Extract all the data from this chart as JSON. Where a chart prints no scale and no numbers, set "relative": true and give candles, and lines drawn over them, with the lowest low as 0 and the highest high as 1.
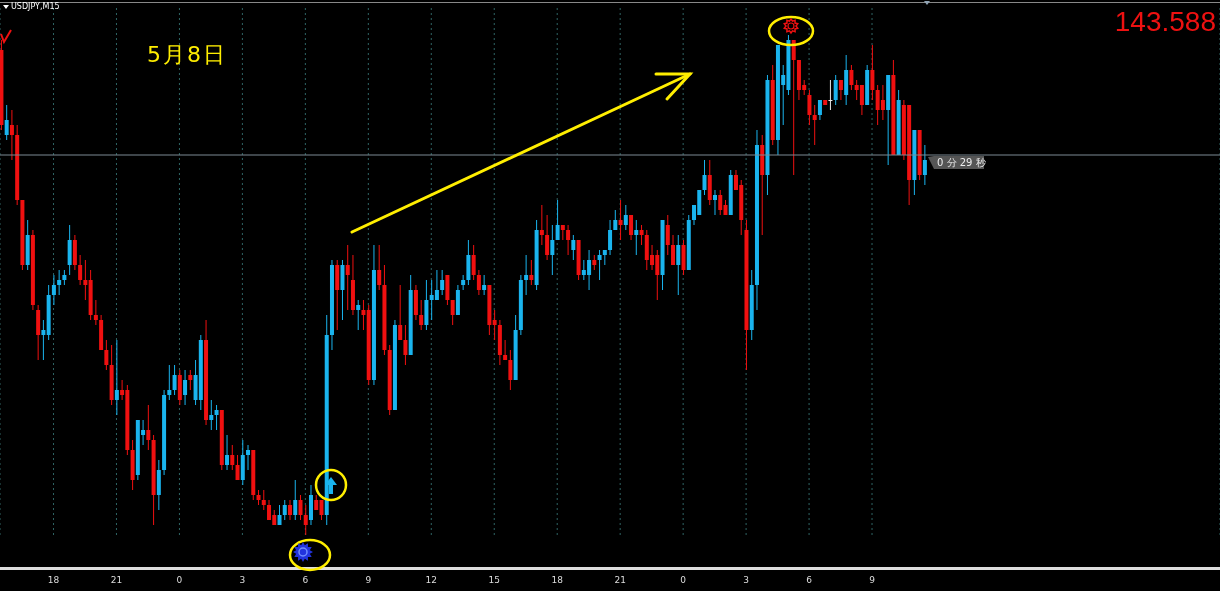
{
  "chart_data": {
    "type": "candlestick",
    "title": "USDJPY,M15",
    "relative": true,
    "annotations": [
      "5月8日",
      "143.588"
    ],
    "grid": "x",
    "ref_lines": [
      {
        "axis": "y",
        "value": 0.76,
        "label": "0 分 29 秒",
        "color": "#7d8a94"
      }
    ],
    "categories": [
      null,
      null,
      null,
      null,
      null,
      null,
      null,
      null,
      null,
      null,
      "18",
      null,
      null,
      null,
      null,
      null,
      null,
      null,
      null,
      null,
      null,
      null,
      "21",
      null,
      null,
      null,
      null,
      null,
      null,
      null,
      null,
      null,
      null,
      null,
      "0",
      null,
      null,
      null,
      null,
      null,
      null,
      null,
      null,
      null,
      null,
      null,
      "3",
      null,
      null,
      null,
      null,
      null,
      null,
      null,
      null,
      null,
      null,
      null,
      "6",
      null,
      null,
      null,
      null,
      null,
      null,
      null,
      null,
      null,
      null,
      null,
      "9",
      null,
      null,
      null,
      null,
      null,
      null,
      null,
      null,
      null,
      null,
      null,
      "12",
      null,
      null,
      null,
      null,
      null,
      null,
      null,
      null,
      null,
      null,
      null,
      "15",
      null,
      null,
      null,
      null,
      null,
      null,
      null,
      null,
      null,
      null,
      null,
      "18",
      null,
      null,
      null,
      null,
      null,
      null,
      null,
      null,
      null,
      null,
      null,
      "21",
      null,
      null,
      null,
      null,
      null,
      null,
      null,
      null,
      null,
      null,
      null,
      "0",
      null,
      null,
      null,
      null,
      null,
      null,
      null,
      null,
      null,
      null,
      null,
      "3",
      null,
      null,
      null,
      null,
      null,
      null,
      null,
      null,
      null,
      null,
      null,
      "6",
      null,
      null,
      null,
      null,
      null,
      null,
      null,
      null,
      null,
      null,
      null,
      "9",
      null,
      null,
      null,
      null,
      null,
      null,
      null,
      null,
      null,
      null
    ],
    "colors": [
      "#f01010",
      "#1ab4ee",
      "#f01010",
      "#f01010",
      "#f01010",
      "#1ab4ee",
      "#f01010",
      "#f01010",
      "#1ab4ee",
      "#1ab4ee",
      "#1ab4ee",
      "#1ab4ee",
      "#1ab4ee",
      "#1ab4ee",
      "#f01010",
      "#f01010",
      "#f01010",
      "#f01010",
      "#f01010",
      "#f01010",
      "#f01010",
      "#f01010",
      "#1ab4ee",
      "#f01010",
      "#f01010",
      "#f01010",
      "#1ab4ee",
      "#1ab4ee",
      "#f01010",
      "#f01010",
      "#1ab4ee",
      "#1ab4ee",
      "#1ab4ee",
      "#1ab4ee",
      "#f01010",
      "#1ab4ee",
      "#f01010",
      "#1ab4ee",
      "#1ab4ee",
      "#f01010",
      "#1ab4ee",
      "#1ab4ee",
      "#f01010",
      "#1ab4ee",
      "#f01010",
      "#f01010",
      "#1ab4ee",
      "#1ab4ee",
      "#f01010",
      "#f01010",
      "#f01010",
      "#f01010",
      "#f01010",
      "#1ab4ee",
      "#1ab4ee",
      "#f01010",
      "#1ab4ee",
      "#f01010",
      "#f01010",
      "#1ab4ee",
      "#f01010",
      "#f01010",
      "#1ab4ee",
      "#1ab4ee",
      "#f01010",
      "#1ab4ee",
      "#f01010",
      "#f01010",
      "#1ab4ee",
      "#f01010",
      "#f01010",
      "#1ab4ee",
      "#f01010",
      "#f01010",
      "#f01010",
      "#1ab4ee",
      "#f01010",
      "#f01010",
      "#1ab4ee",
      "#f01010",
      "#f01010",
      "#1ab4ee",
      "#1ab4ee",
      "#1ab4ee",
      "#1ab4ee",
      "#f01010",
      "#f01010",
      "#1ab4ee",
      "#1ab4ee",
      "#1ab4ee",
      "#f01010",
      "#f01010",
      "#1ab4ee",
      "#f01010",
      "#f01010",
      "#f01010",
      "#f01010",
      "#f01010",
      "#1ab4ee",
      "#1ab4ee",
      "#1ab4ee",
      "#f01010",
      "#1ab4ee",
      "#f01010",
      "#f01010",
      "#1ab4ee",
      "#1ab4ee",
      "#f01010",
      "#f01010",
      "#1ab4ee",
      "#f01010",
      "#1ab4ee",
      "#1ab4ee",
      "#f01010",
      "#1ab4ee",
      "#1ab4ee",
      "#1ab4ee",
      "#1ab4ee",
      "#f01010",
      "#1ab4ee",
      "#f01010",
      "#1ab4ee",
      "#f01010",
      "#f01010",
      "#f01010",
      "#f01010",
      "#1ab4ee",
      "#f01010",
      "#f01010",
      "#1ab4ee",
      "#f01010",
      "#1ab4ee",
      "#1ab4ee",
      "#1ab4ee",
      "#1ab4ee",
      "#f01010",
      "#1ab4ee",
      "#f01010",
      "#f01010",
      "#1ab4ee",
      "#f01010",
      "#f01010",
      "#f01010",
      "#1ab4ee",
      "#1ab4ee",
      "#f01010",
      "#1ab4ee",
      "#f01010",
      "#1ab4ee",
      "#1ab4ee",
      "#1ab4ee",
      "#f01010",
      "#f01010",
      "#f01010",
      "#f01010",
      "#f01010",
      "#1ab4ee",
      "#f01010",
      "#e8e8e8",
      "#1ab4ee",
      "#f01010",
      "#1ab4ee",
      "#f01010",
      "#f01010",
      "#f01010",
      "#1ab4ee",
      "#f01010",
      "#f01010",
      "#f01010",
      "#1ab4ee",
      "#f01010",
      "#1ab4ee",
      "#f01010",
      "#f01010",
      "#1ab4ee",
      "#f01010",
      "#1ab4ee"
    ],
    "ohlc": [
      [
        0.97,
        0.99,
        0.81,
        0.82
      ],
      [
        0.8,
        0.86,
        0.79,
        0.83
      ],
      [
        0.82,
        0.85,
        0.75,
        0.8
      ],
      [
        0.8,
        0.82,
        0.66,
        0.67
      ],
      [
        0.67,
        0.67,
        0.53,
        0.54
      ],
      [
        0.54,
        0.63,
        0.53,
        0.6
      ],
      [
        0.6,
        0.61,
        0.45,
        0.46
      ],
      [
        0.45,
        0.46,
        0.35,
        0.4
      ],
      [
        0.4,
        0.43,
        0.35,
        0.41
      ],
      [
        0.4,
        0.5,
        0.39,
        0.48
      ],
      [
        0.48,
        0.52,
        0.46,
        0.5
      ],
      [
        0.5,
        0.53,
        0.48,
        0.51
      ],
      [
        0.51,
        0.53,
        0.5,
        0.52
      ],
      [
        0.54,
        0.62,
        0.52,
        0.59
      ],
      [
        0.59,
        0.6,
        0.53,
        0.54
      ],
      [
        0.54,
        0.56,
        0.5,
        0.51
      ],
      [
        0.51,
        0.55,
        0.47,
        0.5
      ],
      [
        0.51,
        0.53,
        0.43,
        0.44
      ],
      [
        0.44,
        0.47,
        0.42,
        0.43
      ],
      [
        0.43,
        0.44,
        0.37,
        0.37
      ],
      [
        0.37,
        0.39,
        0.33,
        0.34
      ],
      [
        0.34,
        0.38,
        0.26,
        0.27
      ],
      [
        0.27,
        0.39,
        0.24,
        0.29
      ],
      [
        0.29,
        0.31,
        0.27,
        0.28
      ],
      [
        0.29,
        0.3,
        0.16,
        0.17
      ],
      [
        0.17,
        0.19,
        0.09,
        0.11
      ],
      [
        0.12,
        0.23,
        0.11,
        0.23
      ],
      [
        0.2,
        0.23,
        0.18,
        0.21
      ],
      [
        0.21,
        0.26,
        0.17,
        0.19
      ],
      [
        0.19,
        0.2,
        0.02,
        0.08
      ],
      [
        0.08,
        0.15,
        0.05,
        0.13
      ],
      [
        0.13,
        0.29,
        0.12,
        0.28
      ],
      [
        0.28,
        0.34,
        0.27,
        0.29
      ],
      [
        0.29,
        0.34,
        0.28,
        0.32
      ],
      [
        0.32,
        0.33,
        0.26,
        0.27
      ],
      [
        0.28,
        0.33,
        0.26,
        0.31
      ],
      [
        0.32,
        0.33,
        0.29,
        0.31
      ],
      [
        0.27,
        0.35,
        0.26,
        0.32
      ],
      [
        0.27,
        0.4,
        0.25,
        0.39
      ],
      [
        0.39,
        0.43,
        0.22,
        0.23
      ],
      [
        0.23,
        0.27,
        0.21,
        0.24
      ],
      [
        0.24,
        0.26,
        0.21,
        0.25
      ],
      [
        0.25,
        0.25,
        0.13,
        0.14
      ],
      [
        0.14,
        0.2,
        0.13,
        0.16
      ],
      [
        0.16,
        0.18,
        0.13,
        0.14
      ],
      [
        0.14,
        0.16,
        0.11,
        0.11
      ],
      [
        0.11,
        0.19,
        0.1,
        0.16
      ],
      [
        0.16,
        0.18,
        0.13,
        0.17
      ],
      [
        0.17,
        0.17,
        0.07,
        0.08
      ],
      [
        0.08,
        0.09,
        0.06,
        0.07
      ],
      [
        0.07,
        0.09,
        0.05,
        0.06
      ],
      [
        0.06,
        0.07,
        0.03,
        0.03
      ],
      [
        0.04,
        0.05,
        0.02,
        0.02
      ],
      [
        0.02,
        0.06,
        0.02,
        0.04
      ],
      [
        0.04,
        0.07,
        0.03,
        0.06
      ],
      [
        0.06,
        0.07,
        0.03,
        0.04
      ],
      [
        0.04,
        0.11,
        0.03,
        0.07
      ],
      [
        0.07,
        0.08,
        0.03,
        0.04
      ],
      [
        0.04,
        0.06,
        0.0,
        0.02
      ],
      [
        0.03,
        0.1,
        0.02,
        0.08
      ],
      [
        0.07,
        0.08,
        0.05,
        0.05
      ],
      [
        0.07,
        0.07,
        0.03,
        0.04
      ],
      [
        0.04,
        0.44,
        0.02,
        0.4
      ],
      [
        0.4,
        0.55,
        0.37,
        0.54
      ],
      [
        0.54,
        0.55,
        0.41,
        0.49
      ],
      [
        0.49,
        0.55,
        0.43,
        0.54
      ],
      [
        0.54,
        0.58,
        0.45,
        0.52
      ],
      [
        0.51,
        0.56,
        0.44,
        0.45
      ],
      [
        0.45,
        0.47,
        0.41,
        0.46
      ],
      [
        0.45,
        0.47,
        0.41,
        0.44
      ],
      [
        0.45,
        0.46,
        0.3,
        0.31
      ],
      [
        0.31,
        0.58,
        0.3,
        0.53
      ],
      [
        0.53,
        0.58,
        0.49,
        0.5
      ],
      [
        0.5,
        0.54,
        0.36,
        0.37
      ],
      [
        0.37,
        0.38,
        0.24,
        0.25
      ],
      [
        0.25,
        0.43,
        0.25,
        0.42
      ],
      [
        0.42,
        0.5,
        0.39,
        0.39
      ],
      [
        0.39,
        0.42,
        0.34,
        0.36
      ],
      [
        0.36,
        0.52,
        0.36,
        0.49
      ],
      [
        0.49,
        0.5,
        0.43,
        0.44
      ],
      [
        0.44,
        0.47,
        0.41,
        0.42
      ],
      [
        0.42,
        0.51,
        0.41,
        0.47
      ],
      [
        0.47,
        0.51,
        0.43,
        0.48
      ],
      [
        0.47,
        0.53,
        0.47,
        0.49
      ],
      [
        0.49,
        0.53,
        0.48,
        0.51
      ],
      [
        0.52,
        0.52,
        0.46,
        0.47
      ],
      [
        0.47,
        0.47,
        0.42,
        0.44
      ],
      [
        0.44,
        0.5,
        0.44,
        0.49
      ],
      [
        0.5,
        0.52,
        0.49,
        0.51
      ],
      [
        0.51,
        0.59,
        0.5,
        0.56
      ],
      [
        0.56,
        0.58,
        0.51,
        0.52
      ],
      [
        0.52,
        0.53,
        0.48,
        0.49
      ],
      [
        0.49,
        0.52,
        0.48,
        0.5
      ],
      [
        0.5,
        0.5,
        0.4,
        0.42
      ],
      [
        0.43,
        0.45,
        0.39,
        0.42
      ],
      [
        0.42,
        0.43,
        0.34,
        0.36
      ],
      [
        0.36,
        0.39,
        0.35,
        0.35
      ],
      [
        0.35,
        0.37,
        0.29,
        0.31
      ],
      [
        0.31,
        0.44,
        0.31,
        0.41
      ],
      [
        0.41,
        0.52,
        0.4,
        0.51
      ],
      [
        0.51,
        0.56,
        0.48,
        0.52
      ],
      [
        0.52,
        0.55,
        0.5,
        0.51
      ],
      [
        0.5,
        0.63,
        0.49,
        0.61
      ],
      [
        0.61,
        0.66,
        0.58,
        0.6
      ],
      [
        0.6,
        0.64,
        0.55,
        0.56
      ],
      [
        0.56,
        0.62,
        0.52,
        0.59
      ],
      [
        0.59,
        0.67,
        0.59,
        0.62
      ],
      [
        0.62,
        0.62,
        0.59,
        0.61
      ],
      [
        0.61,
        0.62,
        0.56,
        0.59
      ],
      [
        0.57,
        0.6,
        0.55,
        0.59
      ],
      [
        0.59,
        0.59,
        0.51,
        0.52
      ],
      [
        0.52,
        0.55,
        0.51,
        0.53
      ],
      [
        0.52,
        0.57,
        0.49,
        0.55
      ],
      [
        0.55,
        0.56,
        0.53,
        0.54
      ],
      [
        0.55,
        0.57,
        0.51,
        0.56
      ],
      [
        0.56,
        0.57,
        0.54,
        0.57
      ],
      [
        0.57,
        0.63,
        0.56,
        0.61
      ],
      [
        0.61,
        0.65,
        0.61,
        0.63
      ],
      [
        0.63,
        0.67,
        0.59,
        0.62
      ],
      [
        0.62,
        0.66,
        0.61,
        0.64
      ],
      [
        0.64,
        0.64,
        0.59,
        0.6
      ],
      [
        0.6,
        0.63,
        0.56,
        0.61
      ],
      [
        0.61,
        0.62,
        0.58,
        0.6
      ],
      [
        0.6,
        0.61,
        0.53,
        0.55
      ],
      [
        0.56,
        0.58,
        0.53,
        0.54
      ],
      [
        0.56,
        0.57,
        0.47,
        0.52
      ],
      [
        0.52,
        0.63,
        0.49,
        0.63
      ],
      [
        0.62,
        0.64,
        0.56,
        0.58
      ],
      [
        0.58,
        0.6,
        0.54,
        0.54
      ],
      [
        0.54,
        0.6,
        0.48,
        0.58
      ],
      [
        0.58,
        0.59,
        0.52,
        0.53
      ],
      [
        0.53,
        0.64,
        0.53,
        0.63
      ],
      [
        0.63,
        0.66,
        0.62,
        0.66
      ],
      [
        0.64,
        0.69,
        0.64,
        0.69
      ],
      [
        0.69,
        0.75,
        0.68,
        0.72
      ],
      [
        0.72,
        0.75,
        0.66,
        0.67
      ],
      [
        0.67,
        0.69,
        0.64,
        0.68
      ],
      [
        0.68,
        0.69,
        0.64,
        0.65
      ],
      [
        0.66,
        0.67,
        0.64,
        0.64
      ],
      [
        0.64,
        0.73,
        0.64,
        0.72
      ],
      [
        0.72,
        0.73,
        0.69,
        0.69
      ],
      [
        0.7,
        0.71,
        0.6,
        0.63
      ],
      [
        0.61,
        0.63,
        0.33,
        0.41
      ],
      [
        0.41,
        0.53,
        0.39,
        0.5
      ],
      [
        0.5,
        0.81,
        0.45,
        0.78
      ],
      [
        0.78,
        0.8,
        0.6,
        0.72
      ],
      [
        0.72,
        0.92,
        0.68,
        0.91
      ],
      [
        0.91,
        0.94,
        0.78,
        0.79
      ],
      [
        0.79,
        0.98,
        0.76,
        0.98
      ],
      [
        0.9,
        0.94,
        0.82,
        0.92
      ],
      [
        0.89,
        1.0,
        0.88,
        0.99
      ],
      [
        0.99,
        0.99,
        0.72,
        0.95
      ],
      [
        0.95,
        0.95,
        0.87,
        0.89
      ],
      [
        0.9,
        0.91,
        0.88,
        0.89
      ],
      [
        0.88,
        0.89,
        0.82,
        0.84
      ],
      [
        0.84,
        0.86,
        0.78,
        0.83
      ],
      [
        0.84,
        0.87,
        0.83,
        0.87
      ],
      [
        0.87,
        0.87,
        0.86,
        0.86
      ],
      [
        0.87,
        0.91,
        0.85,
        0.87
      ],
      [
        0.87,
        0.92,
        0.86,
        0.91
      ],
      [
        0.91,
        0.91,
        0.87,
        0.89
      ],
      [
        0.88,
        0.96,
        0.86,
        0.93
      ],
      [
        0.93,
        0.94,
        0.89,
        0.9
      ],
      [
        0.9,
        0.91,
        0.87,
        0.89
      ],
      [
        0.9,
        0.9,
        0.84,
        0.86
      ],
      [
        0.86,
        0.94,
        0.86,
        0.93
      ],
      [
        0.93,
        0.98,
        0.87,
        0.89
      ],
      [
        0.89,
        0.9,
        0.82,
        0.85
      ],
      [
        0.87,
        0.9,
        0.83,
        0.85
      ],
      [
        0.85,
        0.92,
        0.74,
        0.92
      ],
      [
        0.92,
        0.95,
        0.76,
        0.76
      ],
      [
        0.76,
        0.89,
        0.76,
        0.87
      ],
      [
        0.86,
        0.87,
        0.75,
        0.76
      ],
      [
        0.86,
        0.86,
        0.66,
        0.71
      ],
      [
        0.71,
        0.81,
        0.68,
        0.81
      ],
      [
        0.81,
        0.81,
        0.71,
        0.72
      ],
      [
        0.72,
        0.78,
        0.7,
        0.75
      ]
    ]
  }
}
